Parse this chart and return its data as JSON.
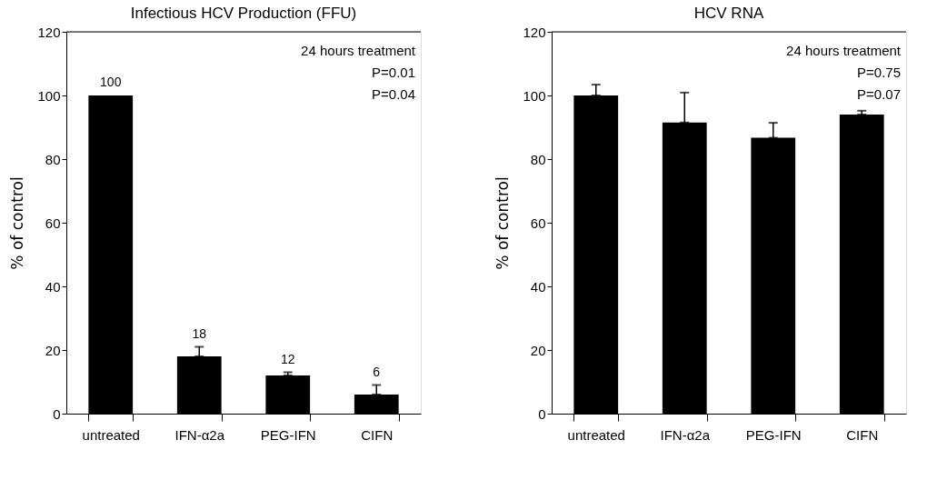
{
  "chart_data": [
    {
      "type": "bar",
      "title": "Infectious HCV Production (FFU)",
      "ylabel": "% of control",
      "categories": [
        "untreated",
        "IFN-α2a",
        "PEG-IFN",
        "CIFN"
      ],
      "values": [
        100,
        18,
        12,
        6
      ],
      "color": "#000000",
      "errors": [
        null,
        [
          18,
          21
        ],
        [
          12,
          13
        ],
        [
          6,
          9
        ]
      ],
      "data_labels": true,
      "ylim": [
        0,
        120
      ],
      "yticks": [
        0,
        20,
        40,
        60,
        80,
        100,
        120
      ],
      "grid": false,
      "annotations": [
        "24 hours treatment",
        "P=0.01",
        "P=0.04"
      ]
    },
    {
      "type": "bar",
      "title": "HCV RNA",
      "ylabel": "% of control",
      "categories": [
        "untreated",
        "IFN-α2a",
        "PEG-IFN",
        "CIFN"
      ],
      "values": [
        100,
        91.5,
        86.7,
        94
      ],
      "color": "#000000",
      "errors": [
        [
          100,
          103.4
        ],
        [
          91.5,
          100.9
        ],
        [
          86.7,
          91.4
        ],
        [
          94,
          95.2
        ]
      ],
      "ylim": [
        0,
        120
      ],
      "yticks": [
        0,
        20,
        40,
        60,
        80,
        100,
        120
      ],
      "grid": false,
      "annotations": [
        "24 hours treatment",
        "P=0.75",
        "P=0.07"
      ]
    }
  ]
}
